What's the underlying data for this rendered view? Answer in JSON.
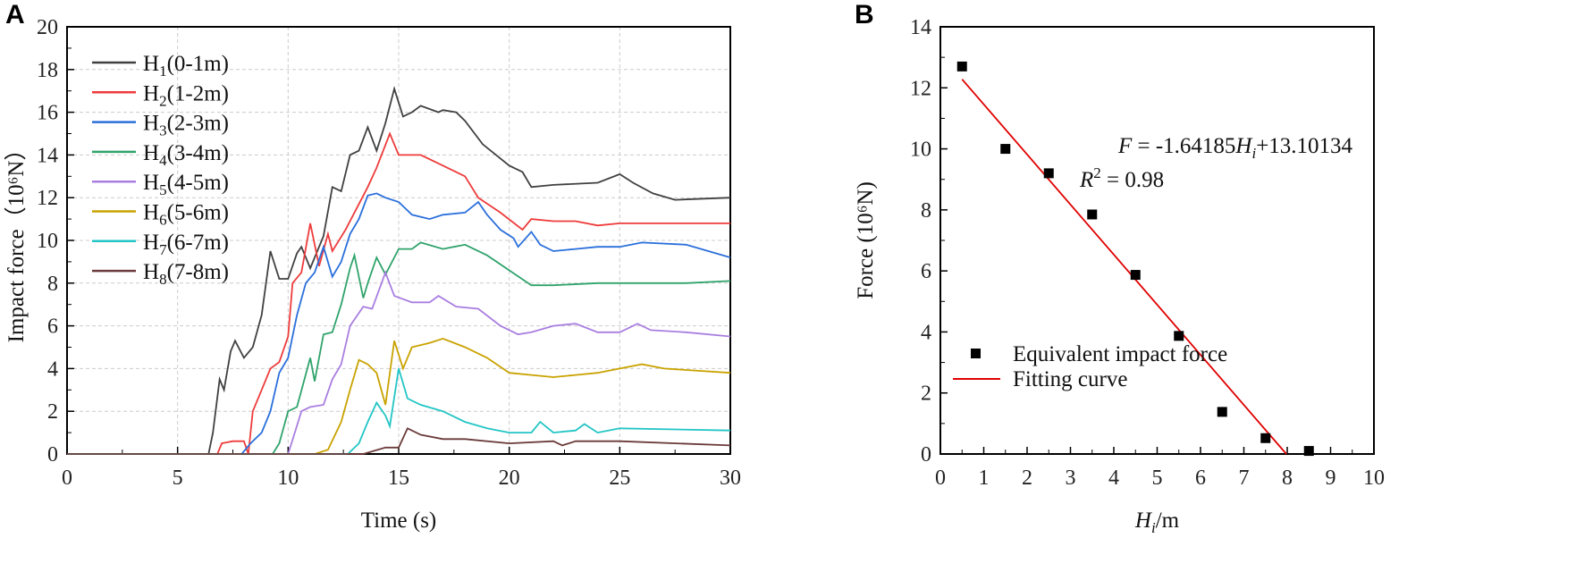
{
  "chart_data": [
    {
      "panel": "A",
      "type": "line",
      "xlabel": "Time (s)",
      "ylabel": "Impact force（10⁶N）",
      "xlim": [
        0,
        30
      ],
      "ylim": [
        0,
        20
      ],
      "xticks": [
        "0",
        "5",
        "10",
        "15",
        "20",
        "25",
        "30"
      ],
      "yticks": [
        "0",
        "2",
        "4",
        "6",
        "8",
        "10",
        "12",
        "14",
        "16",
        "18",
        "20"
      ],
      "grid": true,
      "legend_position": "top-left",
      "series": [
        {
          "name": "H",
          "sub": "1",
          "range": "(0-1m)",
          "color": "#404040",
          "points": [
            [
              0,
              0
            ],
            [
              6.4,
              0
            ],
            [
              6.6,
              1
            ],
            [
              6.9,
              3.5
            ],
            [
              7.1,
              3
            ],
            [
              7.4,
              4.8
            ],
            [
              7.6,
              5.3
            ],
            [
              8,
              4.5
            ],
            [
              8.4,
              5
            ],
            [
              8.8,
              6.5
            ],
            [
              9.2,
              9.5
            ],
            [
              9.6,
              8.2
            ],
            [
              10,
              8.2
            ],
            [
              10.4,
              9.4
            ],
            [
              10.6,
              9.7
            ],
            [
              11,
              8.7
            ],
            [
              11.6,
              10.2
            ],
            [
              12,
              12.5
            ],
            [
              12.4,
              12.3
            ],
            [
              12.8,
              14
            ],
            [
              13.2,
              14.2
            ],
            [
              13.6,
              15.3
            ],
            [
              14,
              14.2
            ],
            [
              14.4,
              15.5
            ],
            [
              14.8,
              17.1
            ],
            [
              15.2,
              15.8
            ],
            [
              15.6,
              16
            ],
            [
              16,
              16.3
            ],
            [
              16.8,
              16
            ],
            [
              17,
              16.1
            ],
            [
              17.6,
              16
            ],
            [
              18,
              15.6
            ],
            [
              18.8,
              14.5
            ],
            [
              20,
              13.5
            ],
            [
              20.6,
              13.2
            ],
            [
              21,
              12.5
            ],
            [
              22,
              12.6
            ],
            [
              24,
              12.7
            ],
            [
              25,
              13.1
            ],
            [
              25.6,
              12.7
            ],
            [
              26.5,
              12.2
            ],
            [
              27.5,
              11.9
            ],
            [
              30,
              12
            ]
          ]
        },
        {
          "name": "H",
          "sub": "2",
          "range": "(1-2m)",
          "color": "#ee3b3b",
          "points": [
            [
              0,
              0
            ],
            [
              6.8,
              0
            ],
            [
              7,
              0.5
            ],
            [
              7.5,
              0.6
            ],
            [
              8,
              0.6
            ],
            [
              8.2,
              0
            ],
            [
              8.4,
              2
            ],
            [
              8.8,
              3
            ],
            [
              9.2,
              4
            ],
            [
              9.6,
              4.3
            ],
            [
              10,
              5.5
            ],
            [
              10.2,
              8
            ],
            [
              10.6,
              8.5
            ],
            [
              11,
              10.8
            ],
            [
              11.4,
              8.8
            ],
            [
              11.8,
              10.3
            ],
            [
              12,
              9.5
            ],
            [
              12.6,
              10.5
            ],
            [
              13,
              11.3
            ],
            [
              13.6,
              12.5
            ],
            [
              14,
              13.4
            ],
            [
              14.6,
              15
            ],
            [
              15,
              14
            ],
            [
              16,
              14
            ],
            [
              17,
              13.5
            ],
            [
              18,
              13
            ],
            [
              18.6,
              12
            ],
            [
              19.6,
              11.3
            ],
            [
              20.6,
              10.5
            ],
            [
              21,
              11
            ],
            [
              22,
              10.9
            ],
            [
              23,
              10.9
            ],
            [
              24,
              10.7
            ],
            [
              25,
              10.8
            ],
            [
              30,
              10.8
            ]
          ]
        },
        {
          "name": "H",
          "sub": "3",
          "range": "(2-3m)",
          "color": "#2a6fdb",
          "points": [
            [
              0,
              0
            ],
            [
              7.9,
              0
            ],
            [
              8.3,
              0.5
            ],
            [
              8.8,
              1
            ],
            [
              9.2,
              2
            ],
            [
              9.6,
              3.8
            ],
            [
              10,
              4.5
            ],
            [
              10.4,
              6.5
            ],
            [
              10.8,
              8
            ],
            [
              11.2,
              8.5
            ],
            [
              11.6,
              9.7
            ],
            [
              12,
              8.3
            ],
            [
              12.4,
              9
            ],
            [
              12.8,
              10.3
            ],
            [
              13.2,
              11
            ],
            [
              13.6,
              12.1
            ],
            [
              14,
              12.2
            ],
            [
              14.4,
              12
            ],
            [
              15,
              11.8
            ],
            [
              15.6,
              11.2
            ],
            [
              16.4,
              11
            ],
            [
              17,
              11.2
            ],
            [
              18,
              11.3
            ],
            [
              18.6,
              11.8
            ],
            [
              19,
              11.2
            ],
            [
              19.6,
              10.5
            ],
            [
              20.2,
              10.1
            ],
            [
              20.4,
              9.7
            ],
            [
              21,
              10.4
            ],
            [
              21.4,
              9.8
            ],
            [
              22,
              9.5
            ],
            [
              23,
              9.6
            ],
            [
              24,
              9.7
            ],
            [
              25,
              9.7
            ],
            [
              26,
              9.9
            ],
            [
              28,
              9.8
            ],
            [
              30,
              9.2
            ]
          ]
        },
        {
          "name": "H",
          "sub": "4",
          "range": "(3-4m)",
          "color": "#2fa36b",
          "points": [
            [
              0,
              0
            ],
            [
              9.3,
              0
            ],
            [
              9.6,
              0.5
            ],
            [
              10,
              2
            ],
            [
              10.4,
              2.2
            ],
            [
              11,
              4.5
            ],
            [
              11.2,
              3.4
            ],
            [
              11.6,
              5.6
            ],
            [
              12,
              5.7
            ],
            [
              12.4,
              7
            ],
            [
              12.8,
              8.7
            ],
            [
              13,
              9.3
            ],
            [
              13.4,
              7.3
            ],
            [
              13.6,
              8
            ],
            [
              14,
              9.2
            ],
            [
              14.4,
              8.4
            ],
            [
              15,
              9.6
            ],
            [
              15.6,
              9.6
            ],
            [
              16,
              9.9
            ],
            [
              17,
              9.6
            ],
            [
              18,
              9.8
            ],
            [
              19,
              9.3
            ],
            [
              20,
              8.6
            ],
            [
              21,
              7.9
            ],
            [
              22,
              7.9
            ],
            [
              24,
              8
            ],
            [
              26,
              8
            ],
            [
              28,
              8
            ],
            [
              30,
              8.1
            ]
          ]
        },
        {
          "name": "H",
          "sub": "5",
          "range": "(4-5m)",
          "color": "#a97ee0",
          "points": [
            [
              0,
              0
            ],
            [
              10,
              0
            ],
            [
              10.3,
              1
            ],
            [
              10.6,
              2
            ],
            [
              11,
              2.2
            ],
            [
              11.6,
              2.3
            ],
            [
              12,
              3.5
            ],
            [
              12.4,
              4.2
            ],
            [
              12.8,
              6
            ],
            [
              13.4,
              6.9
            ],
            [
              13.8,
              6.8
            ],
            [
              14.4,
              8.5
            ],
            [
              14.8,
              7.4
            ],
            [
              15.6,
              7.1
            ],
            [
              16.4,
              7.1
            ],
            [
              16.8,
              7.4
            ],
            [
              17.6,
              6.9
            ],
            [
              18.6,
              6.8
            ],
            [
              19.6,
              6
            ],
            [
              20.4,
              5.6
            ],
            [
              21,
              5.7
            ],
            [
              22,
              6
            ],
            [
              23,
              6.1
            ],
            [
              24,
              5.7
            ],
            [
              25,
              5.7
            ],
            [
              25.8,
              6.1
            ],
            [
              26.4,
              5.8
            ],
            [
              28,
              5.7
            ],
            [
              30,
              5.5
            ]
          ]
        },
        {
          "name": "H",
          "sub": "6",
          "range": "(5-6m)",
          "color": "#c9a200",
          "points": [
            [
              0,
              0
            ],
            [
              11.2,
              0
            ],
            [
              11.8,
              0.2
            ],
            [
              12.4,
              1.5
            ],
            [
              12.8,
              3
            ],
            [
              13.2,
              4.4
            ],
            [
              13.6,
              4.2
            ],
            [
              14,
              3.8
            ],
            [
              14.4,
              2.3
            ],
            [
              14.8,
              5.3
            ],
            [
              15.2,
              4
            ],
            [
              15.6,
              5
            ],
            [
              16.4,
              5.2
            ],
            [
              17,
              5.4
            ],
            [
              18,
              5
            ],
            [
              19,
              4.5
            ],
            [
              20,
              3.8
            ],
            [
              21,
              3.7
            ],
            [
              22,
              3.6
            ],
            [
              23,
              3.7
            ],
            [
              24,
              3.8
            ],
            [
              25,
              4
            ],
            [
              26,
              4.2
            ],
            [
              27,
              4
            ],
            [
              30,
              3.8
            ]
          ]
        },
        {
          "name": "H",
          "sub": "7",
          "range": "(6-7m)",
          "color": "#22c5c5",
          "points": [
            [
              0,
              0
            ],
            [
              12.3,
              0
            ],
            [
              12.7,
              0
            ],
            [
              13.2,
              0.5
            ],
            [
              13.6,
              1.5
            ],
            [
              14,
              2.4
            ],
            [
              14.4,
              1.8
            ],
            [
              14.6,
              1.3
            ],
            [
              15,
              4
            ],
            [
              15.4,
              2.6
            ],
            [
              16,
              2.3
            ],
            [
              17,
              2
            ],
            [
              18,
              1.5
            ],
            [
              19,
              1.2
            ],
            [
              20,
              1
            ],
            [
              21,
              1
            ],
            [
              21.4,
              1.5
            ],
            [
              22,
              1
            ],
            [
              23,
              1.1
            ],
            [
              23.4,
              1.4
            ],
            [
              24,
              1
            ],
            [
              25,
              1.2
            ],
            [
              30,
              1.1
            ]
          ]
        },
        {
          "name": "H",
          "sub": "8",
          "range": "(7-8m)",
          "color": "#6b3a3a",
          "points": [
            [
              0,
              0
            ],
            [
              13.4,
              0
            ],
            [
              14.4,
              0.3
            ],
            [
              15,
              0.3
            ],
            [
              15.4,
              1.2
            ],
            [
              16,
              0.9
            ],
            [
              17,
              0.7
            ],
            [
              18,
              0.7
            ],
            [
              20,
              0.5
            ],
            [
              22,
              0.6
            ],
            [
              22.4,
              0.4
            ],
            [
              23,
              0.6
            ],
            [
              25,
              0.6
            ],
            [
              30,
              0.4
            ]
          ]
        }
      ]
    },
    {
      "panel": "B",
      "type": "scatter",
      "xlabel_italic": "H",
      "xlabel_sub": "i",
      "xlabel_rest": "/m",
      "ylabel": "Force (10⁶N)",
      "xlim": [
        0,
        10
      ],
      "ylim": [
        0,
        14
      ],
      "xticks": [
        "0",
        "1",
        "2",
        "3",
        "4",
        "5",
        "6",
        "7",
        "8",
        "9",
        "10"
      ],
      "yticks": [
        "0",
        "2",
        "4",
        "6",
        "8",
        "10",
        "12",
        "14"
      ],
      "grid": false,
      "legend_position": "bottom-left",
      "scatter": {
        "name": "Equivalent impact force",
        "color": "#000000",
        "x": [
          0.5,
          1.5,
          2.5,
          3.5,
          4.5,
          5.5,
          6.5,
          7.5,
          8.5
        ],
        "y": [
          12.7,
          10.0,
          9.2,
          7.85,
          5.87,
          3.87,
          1.38,
          0.52,
          0.1
        ]
      },
      "fit": {
        "name": "Fitting curve",
        "color": "#e00000",
        "slope": -1.64185,
        "intercept": 13.10134,
        "x_range": [
          0.5,
          7.98
        ]
      },
      "equation": {
        "F": "F",
        "eq1": " = -1.64185",
        "H": "H",
        "i": "i",
        "eq2": "+13.10134",
        "R": "R",
        "sup": "2",
        "r2": " = 0.98"
      }
    }
  ]
}
